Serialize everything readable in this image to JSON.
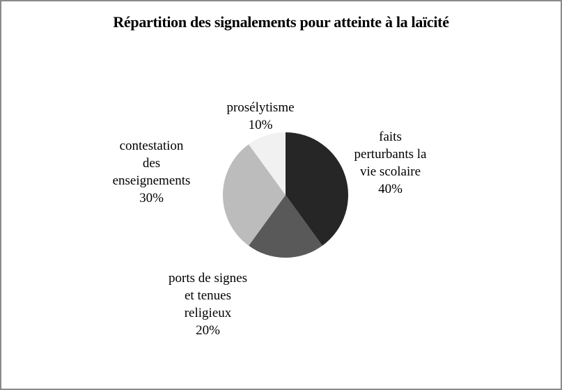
{
  "title": "Répartition des signalements pour atteinte à la laïcité",
  "chart_data": {
    "type": "pie",
    "title": "Répartition des signalements pour atteinte à la laïcité",
    "categories": [
      "faits perturbants la vie scolaire",
      "ports de signes et tenues religieux",
      "contestation des enseignements",
      "prosélytisme"
    ],
    "values": [
      40,
      20,
      30,
      10
    ],
    "unit": "%",
    "colors": [
      "#262626",
      "#595959",
      "#bcbcbc",
      "#f1f1f1"
    ],
    "start_angle_deg": 0,
    "direction": "clockwise",
    "legend": "none",
    "labels_position": "outside"
  },
  "callouts": {
    "right": {
      "lines": [
        "faits",
        "perturbants la",
        "vie scolaire",
        "40%"
      ]
    },
    "bottom": {
      "lines": [
        "ports de signes",
        "et tenues",
        "religieux",
        "20%"
      ]
    },
    "left": {
      "lines": [
        "contestation",
        "des",
        "enseignements",
        "30%"
      ]
    },
    "top": {
      "lines": [
        "prosélytisme",
        "10%"
      ]
    }
  },
  "frame": {
    "border_color": "#8a8a8a",
    "background_color": "#ffffff",
    "text_color": "#000000"
  }
}
